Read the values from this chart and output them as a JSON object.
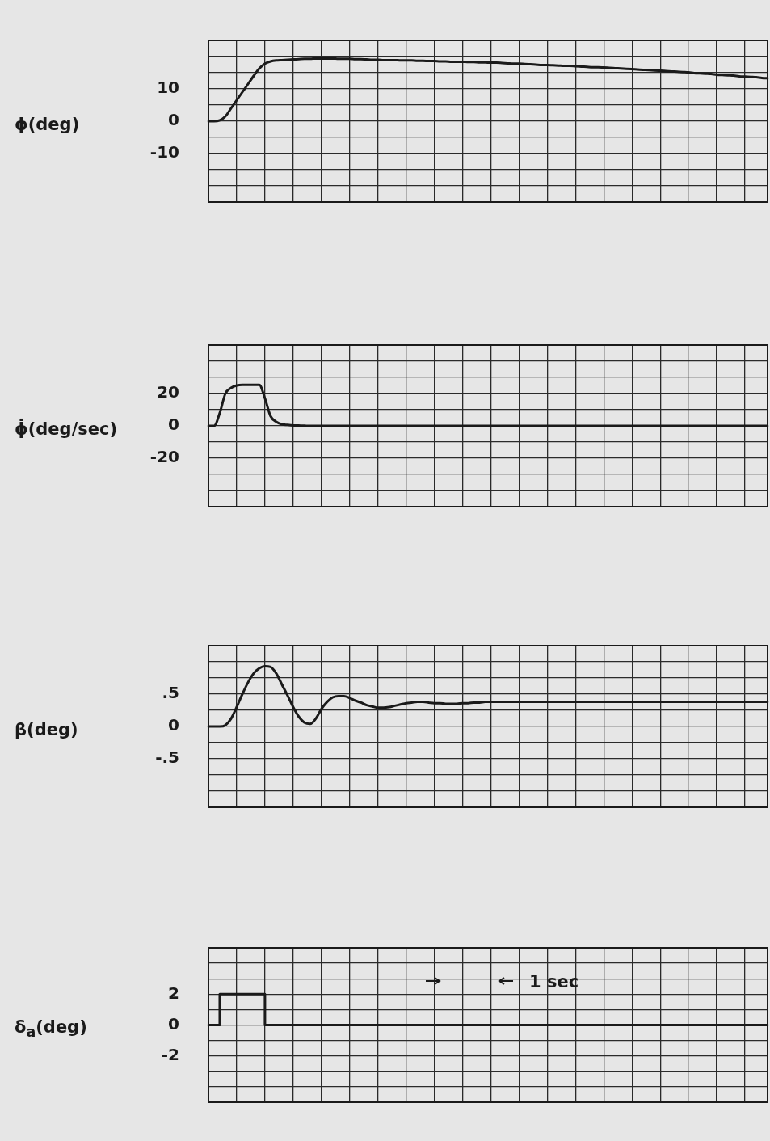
{
  "chart_data": [
    {
      "type": "line",
      "ylabel": "ϕ(deg)",
      "color": "#1a1a1a",
      "marker": "none",
      "grid": true,
      "tick_labels": "y",
      "ylim": [
        -25,
        25
      ],
      "yticks": [
        {
          "value": -25,
          "label": null
        },
        {
          "value": -20,
          "label": null
        },
        {
          "value": -15,
          "label": null
        },
        -10,
        {
          "value": -5,
          "label": null
        },
        0,
        {
          "value": 5,
          "label": null
        },
        10,
        {
          "value": 15,
          "label": null
        },
        {
          "value": 20,
          "label": null
        },
        {
          "value": 25,
          "label": null
        }
      ],
      "categories": [
        null,
        null,
        null,
        null,
        null,
        null,
        null,
        null,
        null,
        null,
        null,
        null,
        null,
        null,
        null,
        null,
        null,
        null,
        null,
        null,
        null,
        null,
        null,
        null,
        null,
        null,
        null,
        null,
        null,
        null,
        null,
        null,
        null,
        null,
        null,
        null,
        null,
        null,
        null,
        null,
        null,
        null,
        null,
        null,
        null,
        null,
        null,
        null,
        null,
        null,
        null,
        null,
        null,
        null,
        null,
        null,
        null,
        null,
        null,
        null,
        null,
        null,
        null,
        null,
        null,
        null,
        null,
        null,
        null,
        null,
        null,
        null,
        null,
        null,
        null,
        null,
        null,
        null,
        null,
        null,
        null,
        null,
        null,
        null,
        null,
        null,
        null,
        null,
        null,
        null,
        null,
        null,
        null,
        null,
        null,
        null,
        null,
        null,
        null,
        null
      ],
      "values": [
        0,
        0,
        0.3,
        1.5,
        4,
        6.5,
        9,
        11.5,
        14,
        16.3,
        17.8,
        18.5,
        18.8,
        18.9,
        19,
        19.1,
        19.2,
        19.3,
        19.3,
        19.4,
        19.4,
        19.4,
        19.4,
        19.3,
        19.3,
        19.3,
        19.2,
        19.2,
        19.1,
        19,
        19,
        18.9,
        18.9,
        18.9,
        18.8,
        18.8,
        18.8,
        18.7,
        18.7,
        18.6,
        18.6,
        18.5,
        18.5,
        18.4,
        18.4,
        18.4,
        18.3,
        18.3,
        18.2,
        18.2,
        18.1,
        18.1,
        18,
        17.9,
        17.8,
        17.8,
        17.7,
        17.6,
        17.5,
        17.4,
        17.4,
        17.3,
        17.2,
        17.1,
        17.1,
        17,
        16.9,
        16.8,
        16.7,
        16.7,
        16.6,
        16.5,
        16.4,
        16.3,
        16.2,
        16.1,
        16,
        15.9,
        15.8,
        15.7,
        15.6,
        15.5,
        15.4,
        15.3,
        15.2,
        15.1,
        14.9,
        14.8,
        14.7,
        14.6,
        14.4,
        14.3,
        14.2,
        14.1,
        13.9,
        13.8,
        13.7,
        13.6,
        13.4,
        13.3
      ]
    },
    {
      "type": "line",
      "ylabel": "ϕ̇(deg/sec)",
      "color": "#1a1a1a",
      "marker": "none",
      "grid": true,
      "tick_labels": "y",
      "ylim": [
        -50,
        50
      ],
      "yticks": [
        {
          "value": -50,
          "label": null
        },
        {
          "value": -40,
          "label": null
        },
        {
          "value": -30,
          "label": null
        },
        -20,
        {
          "value": -10,
          "label": null
        },
        0,
        {
          "value": 10,
          "label": null
        },
        20,
        {
          "value": 30,
          "label": null
        },
        {
          "value": 40,
          "label": null
        },
        {
          "value": 50,
          "label": null
        }
      ],
      "categories": [
        null,
        null,
        null,
        null,
        null,
        null,
        null,
        null,
        null,
        null,
        null,
        null,
        null,
        null,
        null,
        null,
        null,
        null,
        null,
        null,
        null,
        null,
        null,
        null,
        null,
        null,
        null,
        null,
        null,
        null,
        null,
        null,
        null,
        null,
        null,
        null,
        null,
        null,
        null,
        null,
        null,
        null,
        null,
        null,
        null,
        null,
        null,
        null,
        null,
        null,
        null,
        null,
        null,
        null,
        null,
        null,
        null,
        null,
        null,
        null,
        null,
        null,
        null,
        null,
        null,
        null,
        null,
        null,
        null,
        null,
        null,
        null,
        null,
        null,
        null,
        null,
        null,
        null,
        null,
        null,
        null,
        null,
        null,
        null,
        null,
        null,
        null,
        null,
        null,
        null,
        null,
        null,
        null,
        null,
        null,
        null,
        null,
        null,
        null,
        null
      ],
      "values": [
        0,
        0,
        8,
        20,
        23.5,
        25,
        25.4,
        25.4,
        25.4,
        25.4,
        17,
        6,
        2.5,
        1,
        0.6,
        0.3,
        0.2,
        0.1,
        0,
        0,
        0,
        0,
        0,
        0,
        0,
        0,
        0,
        0,
        0,
        0,
        0,
        0,
        0,
        0,
        0,
        0,
        0,
        0,
        0,
        0,
        0,
        0,
        0,
        0,
        0,
        0,
        0,
        0,
        0,
        0,
        0,
        0,
        0,
        0,
        0,
        0,
        0,
        0,
        0,
        0,
        0,
        0,
        0,
        0,
        0,
        0,
        0,
        0,
        0,
        0,
        0,
        0,
        0,
        0,
        0,
        0,
        0,
        0,
        0,
        0,
        0,
        0,
        0,
        0,
        0,
        0,
        0,
        0,
        0,
        0,
        0,
        0,
        0,
        0,
        0,
        0,
        0,
        0,
        0,
        0
      ]
    },
    {
      "type": "line",
      "ylabel": "β(deg)",
      "color": "#1a1a1a",
      "marker": "none",
      "grid": true,
      "tick_labels": "y",
      "ylim": [
        -1.25,
        1.25
      ],
      "yticks": [
        {
          "value": -1.25,
          "label": null
        },
        {
          "value": -1,
          "label": null
        },
        {
          "value": -0.75,
          "label": null
        },
        {
          "value": -0.5,
          "label": "-.5"
        },
        {
          "value": -0.25,
          "label": null
        },
        0,
        {
          "value": 0.25,
          "label": null
        },
        {
          "value": 0.5,
          "label": ".5"
        },
        {
          "value": 0.75,
          "label": null
        },
        {
          "value": 1,
          "label": null
        },
        {
          "value": 1.25,
          "label": null
        }
      ],
      "categories": [
        null,
        null,
        null,
        null,
        null,
        null,
        null,
        null,
        null,
        null,
        null,
        null,
        null,
        null,
        null,
        null,
        null,
        null,
        null,
        null,
        null,
        null,
        null,
        null,
        null,
        null,
        null,
        null,
        null,
        null,
        null,
        null,
        null,
        null,
        null,
        null,
        null,
        null,
        null,
        null,
        null,
        null,
        null,
        null,
        null,
        null,
        null,
        null,
        null,
        null,
        null,
        null,
        null,
        null,
        null,
        null,
        null,
        null,
        null,
        null,
        null,
        null,
        null,
        null,
        null,
        null,
        null,
        null,
        null,
        null,
        null,
        null,
        null,
        null,
        null,
        null,
        null,
        null,
        null,
        null,
        null,
        null,
        null,
        null,
        null,
        null,
        null,
        null,
        null,
        null,
        null,
        null,
        null,
        null,
        null,
        null,
        null,
        null,
        null,
        null
      ],
      "values": [
        0,
        0,
        0,
        0.02,
        0.12,
        0.3,
        0.5,
        0.68,
        0.82,
        0.9,
        0.93,
        0.92,
        0.82,
        0.65,
        0.48,
        0.3,
        0.15,
        0.06,
        0.04,
        0.12,
        0.27,
        0.38,
        0.45,
        0.47,
        0.47,
        0.44,
        0.4,
        0.37,
        0.33,
        0.31,
        0.29,
        0.29,
        0.3,
        0.32,
        0.34,
        0.36,
        0.37,
        0.38,
        0.38,
        0.37,
        0.36,
        0.36,
        0.35,
        0.35,
        0.35,
        0.36,
        0.36,
        0.37,
        0.37,
        0.38,
        0.38,
        0.38,
        0.38,
        0.38,
        0.38,
        0.38,
        0.38,
        0.38,
        0.38,
        0.38,
        0.38,
        0.38,
        0.38,
        0.38,
        0.38,
        0.38,
        0.38,
        0.38,
        0.38,
        0.38,
        0.38,
        0.38,
        0.38,
        0.38,
        0.38,
        0.38,
        0.38,
        0.38,
        0.38,
        0.38,
        0.38,
        0.38,
        0.38,
        0.38,
        0.38,
        0.38,
        0.38,
        0.38,
        0.38,
        0.38,
        0.38,
        0.38,
        0.38,
        0.38,
        0.38,
        0.38,
        0.38,
        0.38,
        0.38,
        0.38
      ]
    },
    {
      "type": "step",
      "ylabel": "δ$_{a}$(deg)",
      "color": "#1a1a1a",
      "marker": "none",
      "grid": true,
      "tick_labels": "y",
      "ylim": [
        -5,
        5
      ],
      "yticks": [
        {
          "value": -5,
          "label": null
        },
        {
          "value": -4,
          "label": null
        },
        {
          "value": -3,
          "label": null
        },
        -2,
        {
          "value": -1,
          "label": null
        },
        0,
        {
          "value": 1,
          "label": null
        },
        2,
        {
          "value": 3,
          "label": null
        },
        {
          "value": 4,
          "label": null
        },
        {
          "value": 5,
          "label": null
        }
      ],
      "annotations": [
        "1 sec"
      ],
      "categories": [
        null,
        null,
        null,
        null,
        null,
        null,
        null,
        null,
        null,
        null,
        null,
        null,
        null,
        null,
        null,
        null,
        null,
        null,
        null,
        null,
        null,
        null,
        null,
        null,
        null,
        null,
        null,
        null,
        null,
        null,
        null,
        null,
        null,
        null,
        null,
        null,
        null,
        null,
        null,
        null,
        null,
        null,
        null,
        null,
        null,
        null,
        null,
        null,
        null,
        null,
        null,
        null,
        null,
        null,
        null,
        null,
        null,
        null,
        null,
        null,
        null,
        null,
        null,
        null,
        null,
        null,
        null,
        null,
        null,
        null,
        null,
        null,
        null,
        null,
        null,
        null,
        null,
        null,
        null,
        null,
        null,
        null,
        null,
        null,
        null,
        null,
        null,
        null,
        null,
        null,
        null,
        null,
        null,
        null,
        null,
        null,
        null,
        null,
        null,
        null
      ],
      "values": [
        0,
        0,
        2,
        2,
        2,
        2,
        2,
        2,
        2,
        2,
        0,
        0,
        0,
        0,
        0,
        0,
        0,
        0,
        0,
        0,
        0,
        0,
        0,
        0,
        0,
        0,
        0,
        0,
        0,
        0,
        0,
        0,
        0,
        0,
        0,
        0,
        0,
        0,
        0,
        0,
        0,
        0,
        0,
        0,
        0,
        0,
        0,
        0,
        0,
        0,
        0,
        0,
        0,
        0,
        0,
        0,
        0,
        0,
        0,
        0,
        0,
        0,
        0,
        0,
        0,
        0,
        0,
        0,
        0,
        0,
        0,
        0,
        0,
        0,
        0,
        0,
        0,
        0,
        0,
        0,
        0,
        0,
        0,
        0,
        0,
        0,
        0,
        0,
        0,
        0,
        0,
        0,
        0,
        0,
        0,
        0,
        0,
        0,
        0,
        0
      ]
    }
  ]
}
